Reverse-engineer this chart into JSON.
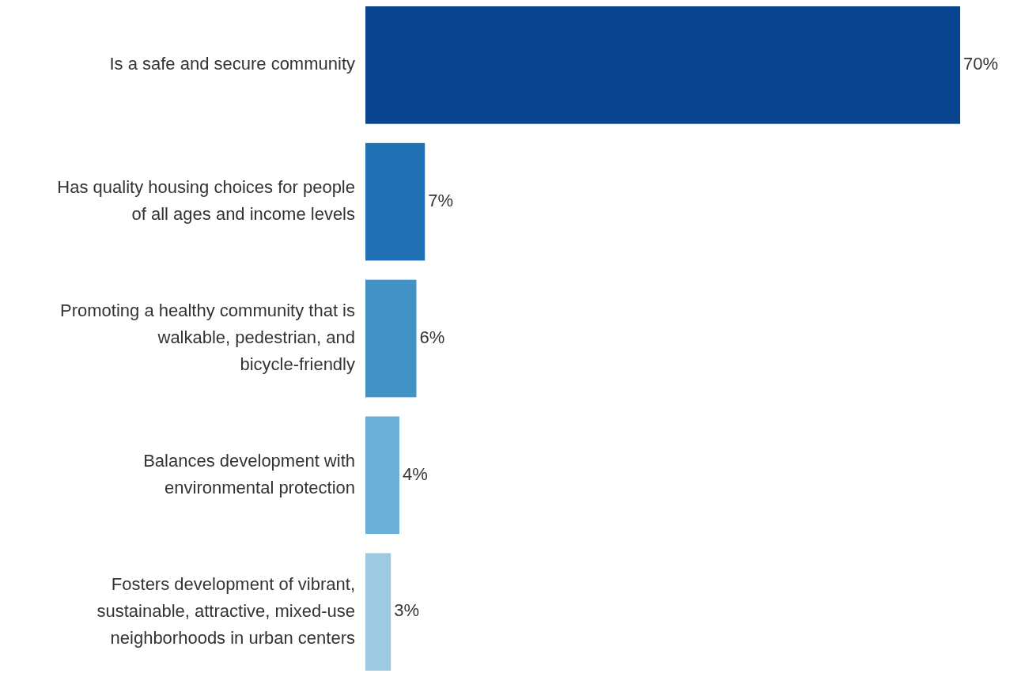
{
  "chart_data": {
    "type": "bar",
    "orientation": "horizontal",
    "categories": [
      "Is a safe and secure community",
      "Has quality housing choices for people of all ages and income levels",
      "Promoting a healthy community that is walkable, pedestrian, and bicycle-friendly",
      "Balances development with environmental protection",
      "Fosters development of vibrant, sustainable, attractive, mixed-use neighborhoods in urban centers"
    ],
    "values": [
      70,
      7,
      6,
      4,
      3
    ],
    "colors": [
      "#08448f",
      "#2171b5",
      "#4292c6",
      "#6baed6",
      "#9ecae1"
    ],
    "value_labels": [
      "70%",
      "7%",
      "6%",
      "4%",
      "3%"
    ]
  }
}
